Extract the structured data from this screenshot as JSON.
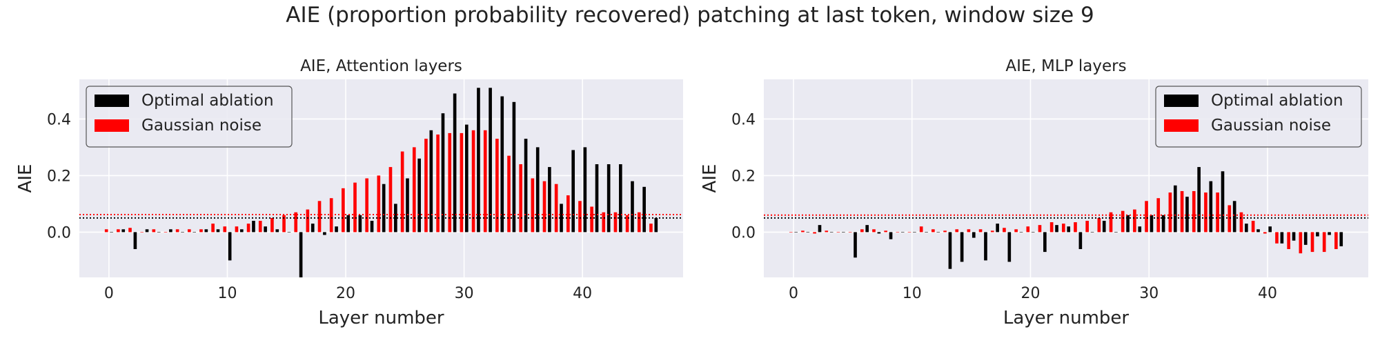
{
  "figure": {
    "title": "AIE (proportion probability recovered) patching at last token, window size 9"
  },
  "chart_data": [
    {
      "type": "bar",
      "title": "AIE, Attention layers",
      "xlabel": "Layer number",
      "ylabel": "AIE",
      "xlim": [
        -2.5,
        48.5
      ],
      "ylim": [
        -0.16,
        0.54
      ],
      "xticks": [
        0,
        10,
        20,
        30,
        40
      ],
      "yticks": [
        0.0,
        0.2,
        0.4
      ],
      "grid": true,
      "legend_position": "top-left",
      "legend_outline_color": "#555555",
      "x": [
        0,
        1,
        2,
        3,
        4,
        5,
        6,
        7,
        8,
        9,
        10,
        11,
        12,
        13,
        14,
        15,
        16,
        17,
        18,
        19,
        20,
        21,
        22,
        23,
        24,
        25,
        26,
        27,
        28,
        29,
        30,
        31,
        32,
        33,
        34,
        35,
        36,
        37,
        38,
        39,
        40,
        41,
        42,
        43,
        44,
        45,
        46
      ],
      "series": [
        {
          "name": "Optimal ablation",
          "color": "#000000",
          "values": [
            0.0,
            0.01,
            -0.06,
            0.01,
            0.0,
            0.01,
            0.0,
            0.0,
            0.01,
            0.01,
            -0.1,
            0.01,
            0.04,
            0.02,
            0.01,
            0.0,
            -0.16,
            0.03,
            -0.01,
            0.02,
            0.06,
            0.06,
            0.04,
            0.17,
            0.1,
            0.19,
            0.26,
            0.36,
            0.42,
            0.49,
            0.38,
            0.51,
            0.51,
            0.48,
            0.46,
            0.33,
            0.3,
            0.23,
            0.1,
            0.29,
            0.3,
            0.24,
            0.24,
            0.24,
            0.18,
            0.16,
            0.05
          ]
        },
        {
          "name": "Gaussian noise",
          "color": "#ff0000",
          "values": [
            0.01,
            0.01,
            0.015,
            0.0,
            0.01,
            0.0,
            0.01,
            0.01,
            0.01,
            0.03,
            0.02,
            0.02,
            0.03,
            0.04,
            0.05,
            0.06,
            0.07,
            0.08,
            0.11,
            0.12,
            0.155,
            0.175,
            0.19,
            0.2,
            0.23,
            0.285,
            0.3,
            0.33,
            0.345,
            0.35,
            0.35,
            0.36,
            0.36,
            0.33,
            0.27,
            0.24,
            0.19,
            0.18,
            0.17,
            0.13,
            0.11,
            0.09,
            0.07,
            0.07,
            0.06,
            0.07,
            0.03
          ]
        }
      ],
      "reference_lines": [
        {
          "color": "#000000",
          "style": "dotted",
          "value": 0.05
        },
        {
          "color": "#ff0000",
          "style": "dotted",
          "value": 0.062
        }
      ]
    },
    {
      "type": "bar",
      "title": "AIE, MLP layers",
      "xlabel": "Layer number",
      "ylabel": "AIE",
      "xlim": [
        -2.5,
        48.5
      ],
      "ylim": [
        -0.16,
        0.54
      ],
      "xticks": [
        0,
        10,
        20,
        30,
        40
      ],
      "yticks": [
        0.0,
        0.2,
        0.4
      ],
      "grid": true,
      "legend_position": "top-right",
      "legend_outline_color": "#555555",
      "x": [
        0,
        1,
        2,
        3,
        4,
        5,
        6,
        7,
        8,
        9,
        10,
        11,
        12,
        13,
        14,
        15,
        16,
        17,
        18,
        19,
        20,
        21,
        22,
        23,
        24,
        25,
        26,
        27,
        28,
        29,
        30,
        31,
        32,
        33,
        34,
        35,
        36,
        37,
        38,
        39,
        40,
        41,
        42,
        43,
        44,
        45,
        46
      ],
      "series": [
        {
          "name": "Optimal ablation",
          "color": "#000000",
          "values": [
            0.0,
            0.0,
            0.025,
            0.0,
            0.0,
            -0.09,
            0.025,
            -0.005,
            -0.025,
            0.0,
            0.0,
            0.0,
            0.0,
            -0.13,
            -0.105,
            -0.02,
            -0.1,
            0.03,
            -0.105,
            0.0,
            0.0,
            -0.07,
            0.025,
            0.02,
            -0.06,
            0.0,
            0.04,
            0.0,
            0.06,
            0.02,
            0.06,
            0.06,
            0.165,
            0.125,
            0.23,
            0.18,
            0.215,
            0.11,
            0.03,
            0.01,
            0.02,
            -0.04,
            -0.03,
            -0.045,
            -0.015,
            -0.01,
            -0.05
          ]
        },
        {
          "name": "Gaussian noise",
          "color": "#ff0000",
          "values": [
            0.0,
            0.005,
            -0.005,
            0.005,
            0.0,
            0.0,
            0.01,
            0.01,
            0.005,
            0.0,
            0.0,
            0.02,
            0.01,
            0.005,
            0.01,
            0.01,
            0.01,
            0.005,
            0.015,
            0.01,
            0.02,
            0.025,
            0.035,
            0.03,
            0.035,
            0.04,
            0.05,
            0.07,
            0.075,
            0.08,
            0.11,
            0.12,
            0.14,
            0.145,
            0.145,
            0.14,
            0.14,
            0.095,
            0.07,
            0.04,
            -0.005,
            -0.04,
            -0.06,
            -0.075,
            -0.07,
            -0.07,
            -0.06
          ]
        }
      ],
      "reference_lines": [
        {
          "color": "#000000",
          "style": "dotted",
          "value": 0.05
        },
        {
          "color": "#ff0000",
          "style": "dotted",
          "value": 0.06
        }
      ]
    }
  ]
}
